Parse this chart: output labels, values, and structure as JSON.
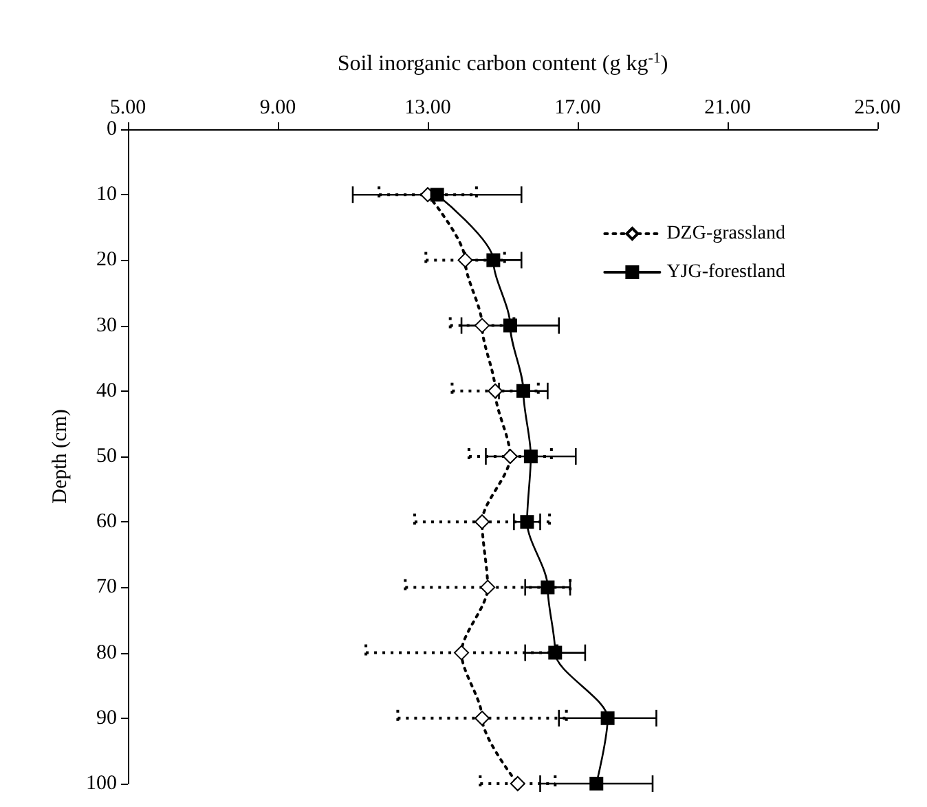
{
  "chart_data": {
    "type": "line",
    "orientation": "horizontal",
    "xlabel": "Soil inorganic carbon content (g kg$^{-1}$)",
    "ylabel": "Depth (cm)",
    "x": [
      10,
      20,
      30,
      40,
      50,
      60,
      70,
      80,
      90,
      100
    ],
    "series": [
      {
        "name": "DZG-grassland",
        "color": "#000000",
        "marker": "diamond",
        "line_style": "dotted",
        "values": [
          13.0,
          14.0,
          14.45,
          14.8,
          15.2,
          14.45,
          14.6,
          13.9,
          14.45,
          15.4
        ],
        "errors": [
          1.3,
          1.05,
          0.85,
          1.15,
          1.1,
          1.8,
          2.2,
          2.55,
          2.25,
          1.0
        ]
      },
      {
        "name": "YJG-forestland",
        "color": "#000000",
        "marker": "square",
        "line_style": "solid",
        "values": [
          13.25,
          14.75,
          15.2,
          15.55,
          15.75,
          15.65,
          16.2,
          16.4,
          17.8,
          17.5
        ],
        "errors": [
          2.25,
          0.75,
          1.3,
          0.65,
          1.2,
          0.35,
          0.6,
          0.8,
          1.3,
          1.5
        ]
      }
    ],
    "xlim": [
      5,
      25
    ],
    "xticks": [
      {
        "value": 5,
        "label": "5.00"
      },
      {
        "value": 9,
        "label": "9.00"
      },
      {
        "value": 13,
        "label": "13.00"
      },
      {
        "value": 17,
        "label": "17.00"
      },
      {
        "value": 21,
        "label": "21.00"
      },
      {
        "value": 25,
        "label": "25.00"
      }
    ],
    "ylim": [
      100,
      0
    ],
    "yticks": [
      0,
      10,
      20,
      30,
      40,
      50,
      60,
      70,
      80,
      90,
      100
    ],
    "grid": false,
    "legend": "top right"
  }
}
